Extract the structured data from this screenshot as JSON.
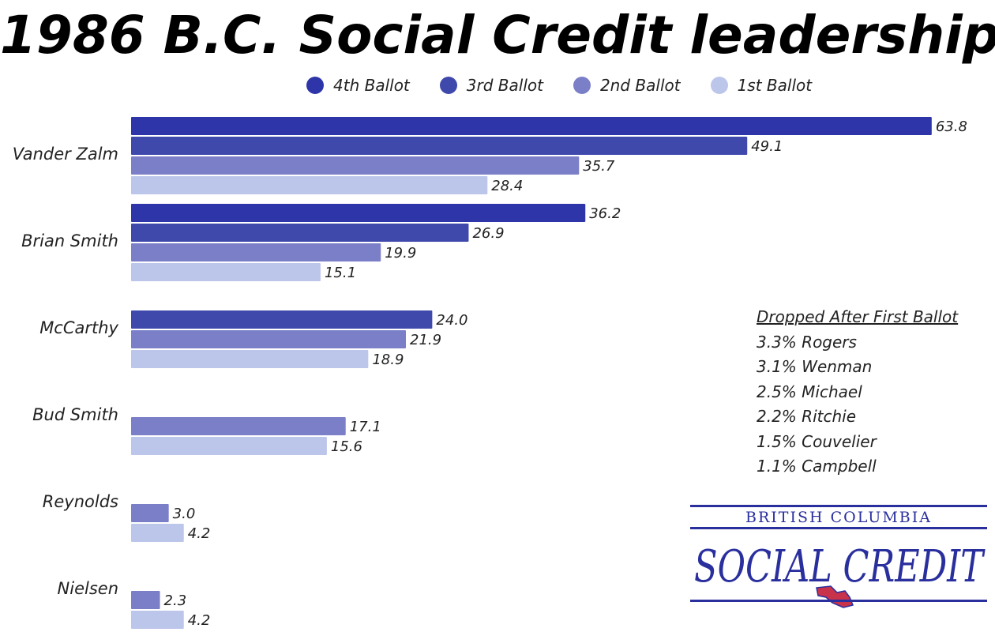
{
  "chart_data": {
    "type": "bar",
    "orientation": "horizontal",
    "title": "1986 B.C. Social Credit leadership",
    "categories": [
      "Vander Zalm",
      "Brian Smith",
      "McCarthy",
      "Bud Smith",
      "Reynolds",
      "Nielsen"
    ],
    "series": [
      {
        "name": "4th Ballot",
        "color": "#2e35a8",
        "values": [
          63.8,
          36.2,
          null,
          null,
          null,
          null
        ]
      },
      {
        "name": "3rd Ballot",
        "color": "#3f48ab",
        "values": [
          49.1,
          26.9,
          24.0,
          null,
          null,
          null
        ]
      },
      {
        "name": "2nd Ballot",
        "color": "#7a7fc8",
        "values": [
          35.7,
          19.9,
          21.9,
          17.1,
          3.0,
          2.3
        ]
      },
      {
        "name": "1st Ballot",
        "color": "#bcc6ea",
        "values": [
          28.4,
          15.1,
          18.9,
          15.6,
          4.2,
          4.2
        ]
      }
    ],
    "legend_position": "top",
    "grid": false,
    "xlim": [
      0,
      64
    ]
  },
  "dropped": {
    "title": "Dropped After First Ballot",
    "items": [
      "3.3% Rogers",
      "3.1% Wenman",
      "2.5% Michael",
      "2.2% Ritchie",
      "1.5% Couvelier",
      "1.1% Campbell"
    ]
  },
  "logo": {
    "top_text": "BRITISH COLUMBIA",
    "main_text": "SOCIAL CREDIT",
    "color": "#2a2f9e",
    "accent_color": "#c8324a"
  }
}
